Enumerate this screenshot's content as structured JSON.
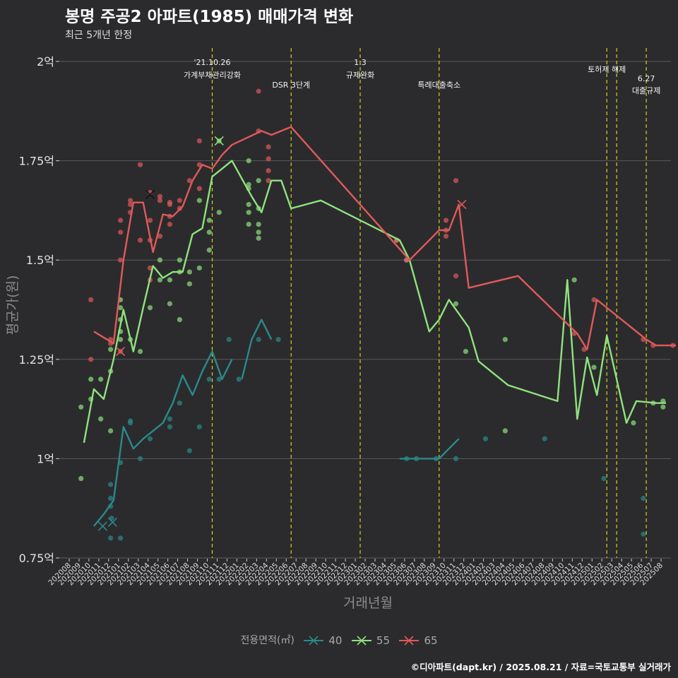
{
  "title": "봉명 주공2 아파트(1985) 매매가격 변화",
  "subtitle": "최근 5개년 한정",
  "caption": "©디아파트(dapt.kr) / 2025.08.21 / 자료=국토교통부 실거래가",
  "chart_data": {
    "type": "line",
    "xlabel": "거래년월",
    "ylabel": "평균가(원)",
    "ylim": [
      0.75,
      2.0
    ],
    "yticks": [
      0.75,
      1.0,
      1.25,
      1.5,
      1.75,
      2.0
    ],
    "ytick_labels": [
      "0.75억",
      "1억",
      "1.25억",
      "1.5억",
      "1.75억",
      "2억"
    ],
    "categories": [
      "202008",
      "202009",
      "202010",
      "202011",
      "202012",
      "202101",
      "202102",
      "202103",
      "202104",
      "202105",
      "202106",
      "202107",
      "202108",
      "202109",
      "202110",
      "202111",
      "202112",
      "202201",
      "202202",
      "202203",
      "202204",
      "202205",
      "202206",
      "202207",
      "202208",
      "202209",
      "202210",
      "202211",
      "202212",
      "202301",
      "202302",
      "202303",
      "202304",
      "202305",
      "202306",
      "202307",
      "202308",
      "202309",
      "202310",
      "202311",
      "202312",
      "202401",
      "202402",
      "202403",
      "202404",
      "202405",
      "202406",
      "202407",
      "202408",
      "202409",
      "202410",
      "202411",
      "202412",
      "202501",
      "202502",
      "202503",
      "202504",
      "202505",
      "202506",
      "202507",
      "202508"
    ],
    "legend_title": "전용면적(㎡)",
    "legend_position": "bottom",
    "grid": true,
    "series": [
      {
        "name": "40",
        "color": "#2b8a8a",
        "line": [
          [
            3.5,
            0.83
          ],
          [
            4.5,
            0.86
          ],
          [
            5.5,
            0.895
          ],
          [
            6.5,
            1.08
          ],
          [
            7.5,
            1.025
          ],
          [
            8.5,
            1.05
          ],
          [
            10.5,
            1.09
          ],
          [
            11.5,
            1.14
          ],
          [
            12.5,
            1.21
          ],
          [
            13.5,
            1.16
          ],
          [
            14.5,
            1.22
          ],
          [
            15.5,
            1.27
          ],
          [
            16.5,
            1.2
          ],
          [
            17.5,
            1.25
          ],
          [
            null,
            null
          ],
          [
            18.5,
            1.2
          ],
          [
            19.5,
            1.3
          ],
          [
            20.5,
            1.35
          ],
          [
            21.5,
            1.3
          ],
          [
            null,
            null
          ],
          [
            34.5,
            1.0
          ],
          [
            35.5,
            1.0
          ],
          [
            37.5,
            1.0
          ],
          [
            38.5,
            1.0
          ],
          [
            39.5,
            1.025
          ],
          [
            40.5,
            1.05
          ]
        ],
        "points": [
          [
            5.2,
            0.935
          ],
          [
            5.2,
            0.9
          ],
          [
            5.2,
            0.88
          ],
          [
            5.3,
            0.85
          ],
          [
            5.2,
            0.8
          ],
          [
            6.2,
            0.99
          ],
          [
            6.2,
            0.8
          ],
          [
            7.2,
            1.095
          ],
          [
            7.2,
            1.09
          ],
          [
            8.2,
            1.0
          ],
          [
            9.2,
            1.05
          ],
          [
            11.2,
            1.1
          ],
          [
            11.2,
            1.08
          ],
          [
            12.2,
            1.14
          ],
          [
            13.2,
            1.02
          ],
          [
            14.2,
            1.08
          ],
          [
            15.2,
            1.2
          ],
          [
            16.2,
            1.2
          ],
          [
            17.2,
            1.3
          ],
          [
            18.2,
            1.2
          ],
          [
            20.2,
            1.3
          ],
          [
            22.2,
            1.3
          ],
          [
            35.2,
            1.0
          ],
          [
            36.2,
            1.0
          ],
          [
            38.2,
            1.0
          ],
          [
            40.2,
            1.0
          ],
          [
            43.2,
            1.05
          ],
          [
            49.2,
            1.05
          ],
          [
            55.2,
            0.95
          ],
          [
            59.2,
            0.9
          ],
          [
            59.2,
            0.81
          ]
        ],
        "cross_marks": [
          [
            4.4,
            0.83
          ],
          [
            5.4,
            0.84
          ]
        ]
      },
      {
        "name": "55",
        "color": "#8fe37e",
        "line": [
          [
            2.5,
            1.04
          ],
          [
            3.5,
            1.175
          ],
          [
            4.5,
            1.15
          ],
          [
            5.5,
            1.25
          ],
          [
            6.5,
            1.375
          ],
          [
            7.5,
            1.27
          ],
          [
            8.5,
            1.38
          ],
          [
            9.5,
            1.485
          ],
          [
            10.5,
            1.455
          ],
          [
            11.5,
            1.47
          ],
          [
            12.5,
            1.47
          ],
          [
            13.5,
            1.565
          ],
          [
            14.5,
            1.58
          ],
          [
            15.5,
            1.71
          ],
          [
            16.5,
            1.73
          ],
          [
            17.5,
            1.75
          ],
          [
            19.5,
            1.66
          ],
          [
            20.5,
            1.62
          ],
          [
            21.5,
            1.7
          ],
          [
            22.5,
            1.7
          ],
          [
            23.5,
            1.63
          ],
          [
            26.5,
            1.65
          ],
          [
            34.5,
            1.55
          ],
          [
            35.5,
            1.5
          ],
          [
            37.5,
            1.32
          ],
          [
            38.5,
            1.35
          ],
          [
            39.5,
            1.4
          ],
          [
            41.5,
            1.33
          ],
          [
            42.5,
            1.245
          ],
          [
            45.5,
            1.185
          ],
          [
            50.5,
            1.145
          ],
          [
            51.5,
            1.45
          ],
          [
            52.5,
            1.1
          ],
          [
            53.5,
            1.255
          ],
          [
            54.5,
            1.16
          ],
          [
            55.5,
            1.31
          ],
          [
            57.5,
            1.09
          ],
          [
            58.5,
            1.145
          ],
          [
            60.5,
            1.14
          ],
          [
            61.5,
            1.14
          ]
        ],
        "points": [
          [
            2.2,
            1.13
          ],
          [
            2.2,
            0.95
          ],
          [
            3.2,
            1.2
          ],
          [
            3.2,
            1.15
          ],
          [
            4.2,
            1.2
          ],
          [
            4.2,
            1.1
          ],
          [
            5.2,
            1.275
          ],
          [
            5.2,
            1.22
          ],
          [
            5.2,
            1.07
          ],
          [
            6.2,
            1.4
          ],
          [
            6.2,
            1.38
          ],
          [
            6.2,
            1.35
          ],
          [
            6.2,
            1.32
          ],
          [
            6.2,
            1.3
          ],
          [
            7.2,
            1.3
          ],
          [
            8.2,
            1.27
          ],
          [
            9.2,
            1.38
          ],
          [
            10.2,
            1.5
          ],
          [
            10.2,
            1.45
          ],
          [
            11.2,
            1.45
          ],
          [
            11.2,
            1.39
          ],
          [
            12.2,
            1.5
          ],
          [
            12.2,
            1.47
          ],
          [
            12.2,
            1.35
          ],
          [
            13.2,
            1.47
          ],
          [
            13.2,
            1.44
          ],
          [
            14.2,
            1.48
          ],
          [
            14.2,
            1.65
          ],
          [
            15.2,
            1.6
          ],
          [
            15.2,
            1.57
          ],
          [
            15.2,
            1.525
          ],
          [
            16.2,
            1.62
          ],
          [
            16.2,
            1.8
          ],
          [
            19.2,
            1.75
          ],
          [
            19.2,
            1.69
          ],
          [
            19.2,
            1.68
          ],
          [
            19.2,
            1.64
          ],
          [
            19.2,
            1.62
          ],
          [
            19.2,
            1.59
          ],
          [
            20.2,
            1.7
          ],
          [
            20.2,
            1.63
          ],
          [
            20.2,
            1.59
          ],
          [
            20.2,
            1.57
          ],
          [
            20.2,
            1.555
          ],
          [
            34.2,
            1.55
          ],
          [
            35.2,
            1.5
          ],
          [
            40.2,
            1.39
          ],
          [
            41.2,
            1.27
          ],
          [
            45.2,
            1.3
          ],
          [
            45.2,
            1.07
          ],
          [
            52.2,
            1.45
          ],
          [
            54.2,
            1.23
          ],
          [
            58.2,
            1.09
          ],
          [
            60.2,
            1.14
          ],
          [
            61.2,
            1.145
          ],
          [
            61.2,
            1.13
          ]
        ],
        "cross_marks": [
          [
            16.2,
            1.8
          ]
        ]
      },
      {
        "name": "65",
        "color": "#e05a5a",
        "line": [
          [
            3.5,
            1.32
          ],
          [
            5.5,
            1.29
          ],
          [
            6.5,
            1.5
          ],
          [
            7.5,
            1.645
          ],
          [
            8.5,
            1.645
          ],
          [
            9.5,
            1.52
          ],
          [
            10.5,
            1.615
          ],
          [
            11.5,
            1.61
          ],
          [
            12.5,
            1.635
          ],
          [
            13.5,
            1.7
          ],
          [
            14.5,
            1.74
          ],
          [
            15.5,
            1.73
          ],
          [
            16.5,
            1.765
          ],
          [
            17.5,
            1.79
          ],
          [
            20.5,
            1.825
          ],
          [
            21.5,
            1.815
          ],
          [
            23.5,
            1.835
          ],
          [
            35.5,
            1.5
          ],
          [
            38.5,
            1.575
          ],
          [
            39.5,
            1.575
          ],
          [
            40.5,
            1.64
          ],
          [
            41.5,
            1.43
          ],
          [
            46.5,
            1.46
          ],
          [
            52.5,
            1.315
          ],
          [
            53.5,
            1.275
          ],
          [
            54.5,
            1.4
          ],
          [
            59.5,
            1.3
          ],
          [
            60.5,
            1.285
          ],
          [
            61.5,
            1.285
          ],
          [
            62.5,
            1.285
          ]
        ],
        "points": [
          [
            3.2,
            1.4
          ],
          [
            3.2,
            1.25
          ],
          [
            5.2,
            1.3
          ],
          [
            5.2,
            1.29
          ],
          [
            6.2,
            1.27
          ],
          [
            6.2,
            1.6
          ],
          [
            6.2,
            1.57
          ],
          [
            6.2,
            1.5
          ],
          [
            7.2,
            1.65
          ],
          [
            7.2,
            1.64
          ],
          [
            7.2,
            1.62
          ],
          [
            8.2,
            1.74
          ],
          [
            8.2,
            1.55
          ],
          [
            9.2,
            1.67
          ],
          [
            9.2,
            1.6
          ],
          [
            9.2,
            1.55
          ],
          [
            9.2,
            1.48
          ],
          [
            9.2,
            1.45
          ],
          [
            10.2,
            1.66
          ],
          [
            10.2,
            1.65
          ],
          [
            10.2,
            1.56
          ],
          [
            11.2,
            1.645
          ],
          [
            11.2,
            1.64
          ],
          [
            11.2,
            1.61
          ],
          [
            11.2,
            1.59
          ],
          [
            12.2,
            1.65
          ],
          [
            12.2,
            1.63
          ],
          [
            13.2,
            1.7
          ],
          [
            14.2,
            1.8
          ],
          [
            14.2,
            1.74
          ],
          [
            14.2,
            1.68
          ],
          [
            20.2,
            1.825
          ],
          [
            21.2,
            1.785
          ],
          [
            21.2,
            1.755
          ],
          [
            21.2,
            1.725
          ],
          [
            21.2,
            1.7
          ],
          [
            34.2,
            1.55
          ],
          [
            35.2,
            1.5
          ],
          [
            39.2,
            1.6
          ],
          [
            39.2,
            1.575
          ],
          [
            39.2,
            1.56
          ],
          [
            40.2,
            1.7
          ],
          [
            40.2,
            1.46
          ],
          [
            52.2,
            1.315
          ],
          [
            53.2,
            1.275
          ],
          [
            54.2,
            1.4
          ],
          [
            59.2,
            1.3
          ],
          [
            60.2,
            1.285
          ],
          [
            62.2,
            1.285
          ]
        ],
        "cross_marks": [
          [
            6.2,
            1.27
          ],
          [
            9.2,
            1.665
          ],
          [
            40.8,
            1.64
          ]
        ]
      }
    ],
    "vlines": [
      {
        "x": 15.5,
        "labels": [
          "'21.10.26",
          "가계부채관리강화"
        ]
      },
      {
        "x": 23.5,
        "labels": [
          "DSR 3단계"
        ]
      },
      {
        "x": 30.5,
        "labels": [
          "1.3",
          "규제완화"
        ]
      },
      {
        "x": 38.5,
        "labels": [
          "특례대출축소"
        ]
      },
      {
        "x": 55.5,
        "labels": [
          "토허제 해제"
        ]
      },
      {
        "x": 56.5,
        "labels": []
      },
      {
        "x": 59.5,
        "labels": [
          "6.27",
          "대출규제"
        ]
      }
    ]
  }
}
